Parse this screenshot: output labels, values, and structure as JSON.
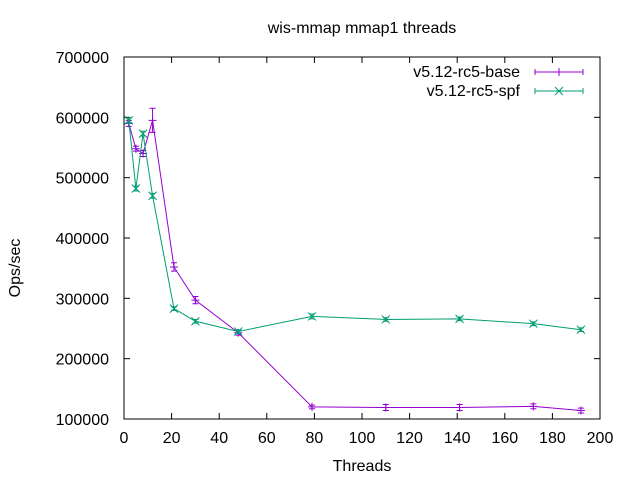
{
  "chart_data": {
    "type": "line",
    "title": "wis-mmap mmap1 threads",
    "xlabel": "Threads",
    "ylabel": "Ops/sec",
    "xlim": [
      0,
      200
    ],
    "ylim": [
      100000,
      700000
    ],
    "xticks": [
      0,
      20,
      40,
      60,
      80,
      100,
      120,
      140,
      160,
      180,
      200
    ],
    "yticks": [
      100000,
      200000,
      300000,
      400000,
      500000,
      600000,
      700000
    ],
    "grid": false,
    "legend_position": "top-right",
    "series": [
      {
        "name": "v5.12-rc5-base",
        "color": "#9400d3",
        "marker": "plus",
        "x": [
          2,
          5,
          8,
          12,
          21,
          30,
          48,
          79,
          110,
          141,
          172,
          192
        ],
        "y": [
          590000,
          548000,
          540000,
          595000,
          352000,
          297000,
          243000,
          120000,
          119000,
          119000,
          121000,
          114000
        ],
        "err": [
          5000,
          4000,
          5000,
          20000,
          7000,
          6000,
          4000,
          3000,
          5000,
          5000,
          4000,
          4000
        ]
      },
      {
        "name": "v5.12-rc5-spf",
        "color": "#009e73",
        "marker": "x",
        "x": [
          2,
          5,
          8,
          12,
          21,
          30,
          48,
          79,
          110,
          141,
          172,
          192
        ],
        "y": [
          595000,
          482000,
          573000,
          470000,
          283000,
          262000,
          245000,
          270000,
          265000,
          266000,
          258000,
          248000
        ],
        "err": [
          4000,
          4000,
          4000,
          4000,
          3000,
          3000,
          3000,
          4000,
          3000,
          3000,
          3000,
          3000
        ]
      }
    ]
  }
}
